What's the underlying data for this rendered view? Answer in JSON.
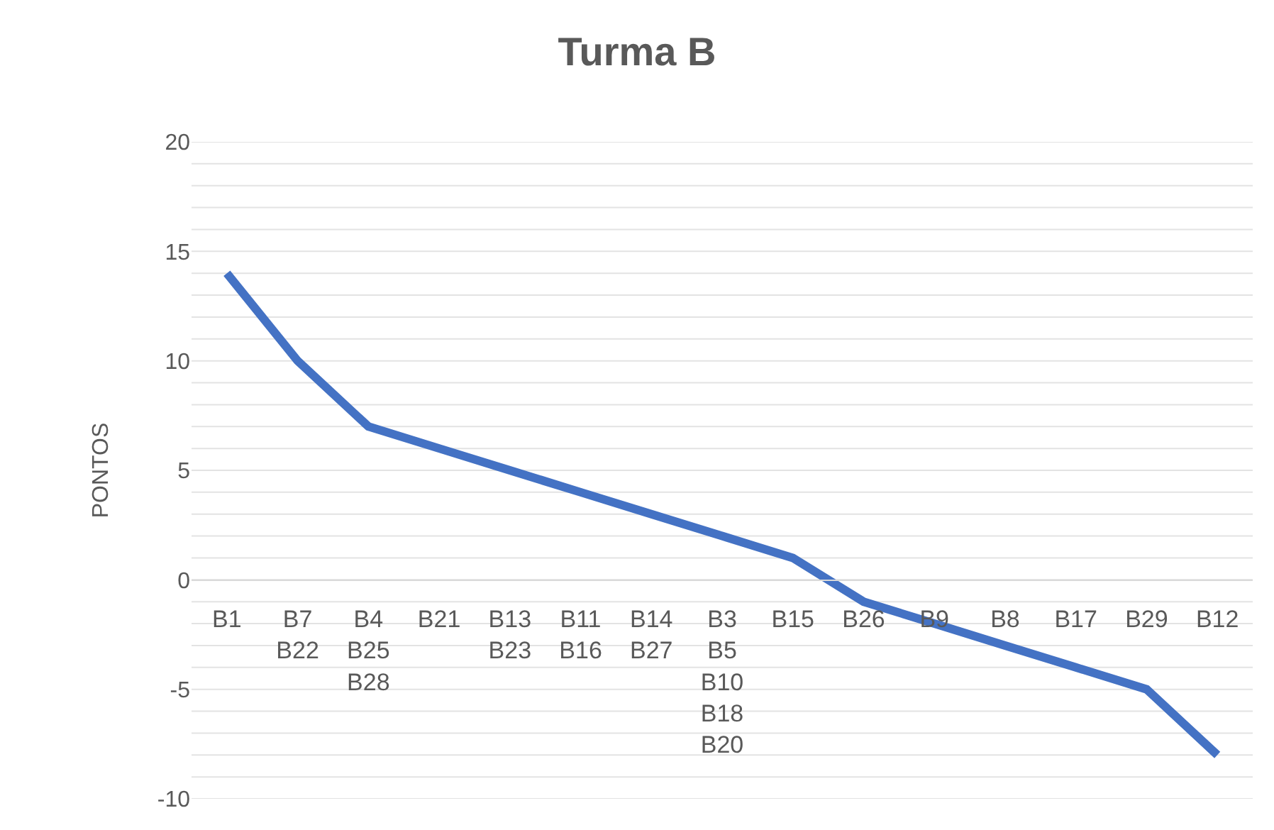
{
  "chart_data": {
    "type": "line",
    "title": "Turma B",
    "ylabel": "PONTOS",
    "categories": [
      "B1",
      "B7\nB22",
      "B4\nB25\nB28",
      "B21",
      "B13\nB23",
      "B11\nB16",
      "B14\nB27",
      "B3\nB5\nB10\nB18\nB20",
      "B15",
      "B26",
      "B9",
      "B8",
      "B17",
      "B29",
      "B12"
    ],
    "series": [
      {
        "color": "#4472c4",
        "values": [
          14,
          10,
          7,
          6,
          5,
          4,
          3,
          2,
          1,
          -1,
          -2,
          -3,
          -4,
          -5,
          -8
        ]
      }
    ],
    "ylim": [
      -10,
      20
    ],
    "yticks": [
      -10,
      {
        "value": -9,
        "label": null
      },
      {
        "value": -8,
        "label": null
      },
      {
        "value": -7,
        "label": null
      },
      {
        "value": -6,
        "label": null
      },
      -5,
      {
        "value": -4,
        "label": null
      },
      {
        "value": -3,
        "label": null
      },
      {
        "value": -2,
        "label": null
      },
      {
        "value": -1,
        "label": null
      },
      0,
      {
        "value": 1,
        "label": null
      },
      {
        "value": 2,
        "label": null
      },
      {
        "value": 3,
        "label": null
      },
      {
        "value": 4,
        "label": null
      },
      5,
      {
        "value": 6,
        "label": null
      },
      {
        "value": 7,
        "label": null
      },
      {
        "value": 8,
        "label": null
      },
      {
        "value": 9,
        "label": null
      },
      10,
      {
        "value": 11,
        "label": null
      },
      {
        "value": 12,
        "label": null
      },
      {
        "value": 13,
        "label": null
      },
      {
        "value": 14,
        "label": null
      },
      15,
      {
        "value": 16,
        "label": null
      },
      {
        "value": 17,
        "label": null
      },
      {
        "value": 18,
        "label": null
      },
      {
        "value": 19,
        "label": null
      },
      20
    ],
    "grid": "y",
    "legend": false,
    "marker": "none",
    "line_style": "solid"
  }
}
